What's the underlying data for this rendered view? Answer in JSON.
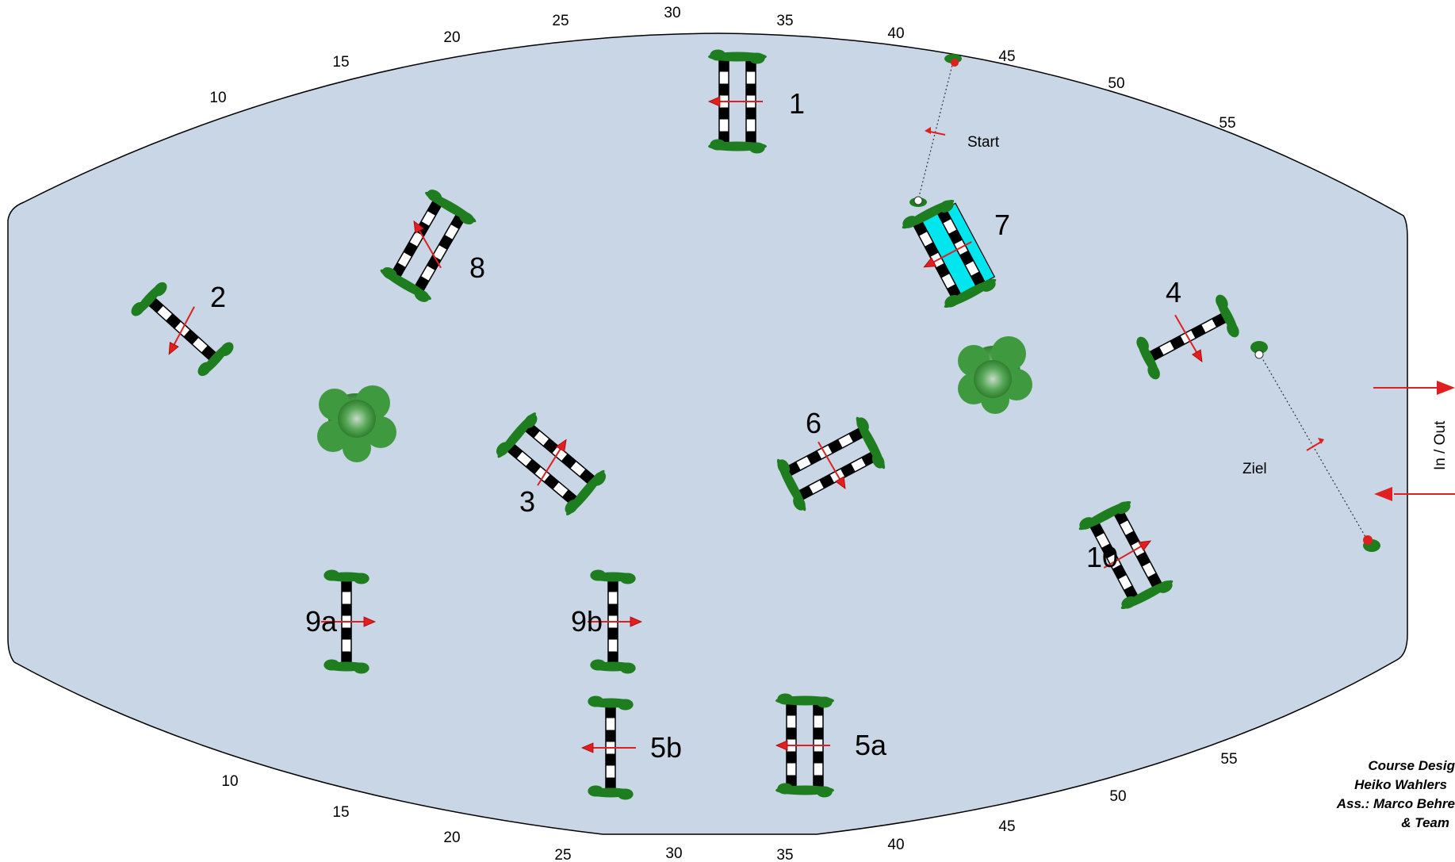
{
  "arena": {
    "fill": "#c8d6e6",
    "border": "#000000",
    "scale_top": [
      "10",
      "15",
      "20",
      "25",
      "30",
      "35",
      "40",
      "45",
      "50",
      "55"
    ],
    "scale_bottom": [
      "10",
      "15",
      "20",
      "25",
      "30",
      "35",
      "40",
      "45",
      "50",
      "55"
    ]
  },
  "colors": {
    "pole_dark": "#000000",
    "pole_light": "#ffffff",
    "wing": "#1e7d1e",
    "direction_arrow": "#e02020",
    "water_tray": "#00e5ee",
    "bush": "#3f9a3f"
  },
  "fences": [
    {
      "label": "1",
      "kind": "oxer"
    },
    {
      "label": "2",
      "kind": "vertical"
    },
    {
      "label": "3",
      "kind": "oxer"
    },
    {
      "label": "4",
      "kind": "vertical"
    },
    {
      "label": "5a",
      "kind": "oxer"
    },
    {
      "label": "5b",
      "kind": "vertical"
    },
    {
      "label": "6",
      "kind": "oxer"
    },
    {
      "label": "7",
      "kind": "oxer-water"
    },
    {
      "label": "8",
      "kind": "oxer"
    },
    {
      "label": "9a",
      "kind": "vertical"
    },
    {
      "label": "9b",
      "kind": "vertical"
    },
    {
      "label": "10",
      "kind": "oxer"
    }
  ],
  "markers": {
    "start": "Start",
    "finish": "Ziel",
    "gate": "In / Out"
  },
  "credits": {
    "line1": "Course Desig",
    "line2": "Heiko Wahlers",
    "line3": "Ass.: Marco Behre",
    "line4": "& Team"
  }
}
